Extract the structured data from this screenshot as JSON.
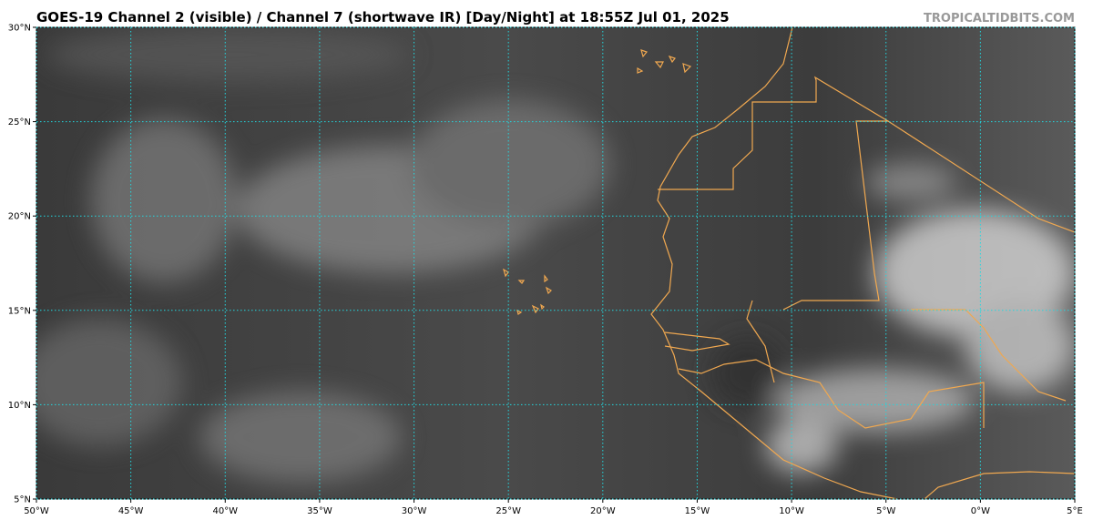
{
  "map": {
    "title": "GOES-19 Channel 2 (visible) / Channel 7 (shortwave IR) [Day/Night] at 18:55Z Jul 01, 2025",
    "credit": "TROPICALTIDBITS.COM",
    "lon_range": [
      -50,
      5
    ],
    "lat_range": [
      5,
      30
    ],
    "lon_ticks": [
      {
        "value": -50,
        "label": "50°W"
      },
      {
        "value": -45,
        "label": "45°W"
      },
      {
        "value": -40,
        "label": "40°W"
      },
      {
        "value": -35,
        "label": "35°W"
      },
      {
        "value": -30,
        "label": "30°W"
      },
      {
        "value": -25,
        "label": "25°W"
      },
      {
        "value": -20,
        "label": "20°W"
      },
      {
        "value": -15,
        "label": "15°W"
      },
      {
        "value": -10,
        "label": "10°W"
      },
      {
        "value": -5,
        "label": "5°W"
      },
      {
        "value": 0,
        "label": "0°W"
      },
      {
        "value": 5,
        "label": "5°E"
      }
    ],
    "lat_ticks": [
      {
        "value": 5,
        "label": "5°N"
      },
      {
        "value": 10,
        "label": "10°N"
      },
      {
        "value": 15,
        "label": "15°N"
      },
      {
        "value": 20,
        "label": "20°N"
      },
      {
        "value": 25,
        "label": "25°N"
      },
      {
        "value": 30,
        "label": "30°N"
      }
    ]
  }
}
